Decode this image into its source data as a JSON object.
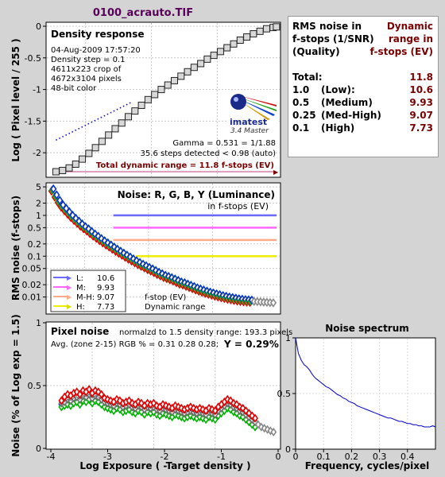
{
  "page_title": "0100_acrauto.TIF",
  "summary": {
    "header_left": [
      "RMS noise in",
      "f-stops (1/SNR)",
      "(Quality)"
    ],
    "header_right": [
      "Dynamic",
      "range in",
      "f-stops (EV)"
    ],
    "total_label": "Total:",
    "total_value": "11.8",
    "rows": [
      {
        "key": "1.0",
        "desc": "(Low):",
        "value": "10.6"
      },
      {
        "key": "0.5",
        "desc": "(Medium)",
        "value": "9.93"
      },
      {
        "key": "0.25",
        "desc": "(Med-High)",
        "value": "9.07"
      },
      {
        "key": "0.1",
        "desc": "(High)",
        "value": "7.73"
      }
    ]
  },
  "density_panel": {
    "title": "Density response",
    "info": [
      "04-Aug-2009 17:57:20",
      "Density step = 0.1",
      "4611x223 crop of",
      "4672x3104 pixels",
      "48-bit color"
    ],
    "logo_text": "imatest",
    "version": "3.4  Master",
    "gamma_text": "Gamma = 0.531 = 1/1.88",
    "steps_text": "35.6 steps detected < 0.98 (auto)",
    "dr_text": "Total dynamic range = 11.8 f-stops (EV)",
    "ylabel": "Log ( Pixel level / 255 )",
    "yticks": [
      "0",
      "-0.5",
      "-1",
      "-1.5",
      "-2"
    ]
  },
  "noise_fstop_panel": {
    "title": "Noise: R, G, B, Y (Luminance)",
    "subtitle": "in f-stops (EV)",
    "ylabel": "RMS noise (f-stops)",
    "yticks": [
      "5",
      "2",
      "1",
      "0.5",
      "0.2",
      "0.1",
      "0.05",
      "0.02",
      "0.01"
    ],
    "legend": [
      {
        "label": "L:",
        "value": "10.6",
        "color": "#6a6aff"
      },
      {
        "label": "M:",
        "value": "9.93",
        "color": "#ff66ff"
      },
      {
        "label": "M-H:",
        "value": "9.07",
        "color": "#ffaa88"
      },
      {
        "label": "H:",
        "value": "7.73",
        "color": "#eeee00"
      }
    ],
    "note1": "f-stop (EV)",
    "note2": "Dynamic range"
  },
  "pixel_noise_panel": {
    "title": "Pixel noise",
    "norm_text": "normalzd to 1.5 density range: 193.3 pixels",
    "avg_text": "Avg. (zone 2-15) RGB % = 0.31  0.28  0.28;",
    "y_text": "Y = 0.29%",
    "ylabel": "Noise (% of Log exp = 1.5)",
    "xlabel": "Log Exposure ( -Target density )",
    "yticks": [
      "1",
      "0.5",
      "0"
    ],
    "xticks": [
      "-4",
      "-3",
      "-2",
      "-1",
      "0"
    ]
  },
  "spectrum_panel": {
    "title": "Noise spectrum",
    "xlabel": "Frequency, cycles/pixel",
    "yticks": [
      "1",
      "0.5",
      "0"
    ],
    "xticks": [
      "0",
      "0.1",
      "0.2",
      "0.3",
      "0.4"
    ]
  },
  "chart_data": [
    {
      "name": "density_response",
      "type": "scatter",
      "title": "Density response",
      "ylabel": "Log ( Pixel level / 255 )",
      "xlim": [
        -3.6,
        -0.05
      ],
      "ylim": [
        -2.35,
        0
      ],
      "step_x": [
        -3.45,
        -3.35,
        -3.25,
        -3.15,
        -3.05,
        -2.95,
        -2.85,
        -2.75,
        -2.65,
        -2.55,
        -2.45,
        -2.35,
        -2.25,
        -2.15,
        -2.05,
        -1.95,
        -1.85,
        -1.75,
        -1.65,
        -1.55,
        -1.45,
        -1.35,
        -1.25,
        -1.15,
        -1.05,
        -0.95,
        -0.85,
        -0.75,
        -0.65,
        -0.55,
        -0.45,
        -0.35,
        -0.25,
        -0.15,
        -0.1
      ],
      "step_y": [
        -2.3,
        -2.28,
        -2.24,
        -2.18,
        -2.1,
        -2.01,
        -1.92,
        -1.82,
        -1.72,
        -1.62,
        -1.53,
        -1.43,
        -1.34,
        -1.25,
        -1.16,
        -1.08,
        -1.0,
        -0.93,
        -0.86,
        -0.79,
        -0.72,
        -0.65,
        -0.59,
        -0.52,
        -0.46,
        -0.4,
        -0.34,
        -0.28,
        -0.22,
        -0.17,
        -0.12,
        -0.08,
        -0.04,
        -0.02,
        -0.01
      ],
      "gamma_fit_x": [
        -3.45,
        -2.3
      ],
      "gamma_fit_y": [
        -1.8,
        -1.2
      ]
    },
    {
      "name": "noise_fstops",
      "type": "scatter",
      "title": "Noise: R, G, B, Y (Luminance)",
      "ylabel": "RMS noise (f-stops)",
      "yscale": "log",
      "ylim": [
        0.004,
        6
      ],
      "xlim": [
        -3.6,
        0.05
      ],
      "x": [
        -3.5,
        -3.45,
        -3.4,
        -3.35,
        -3.3,
        -3.25,
        -3.2,
        -3.15,
        -3.1,
        -3.05,
        -3.0,
        -2.95,
        -2.9,
        -2.85,
        -2.8,
        -2.75,
        -2.7,
        -2.65,
        -2.6,
        -2.55,
        -2.5,
        -2.45,
        -2.4,
        -2.35,
        -2.3,
        -2.25,
        -2.2,
        -2.15,
        -2.1,
        -2.05,
        -2.0,
        -1.95,
        -1.9,
        -1.85,
        -1.8,
        -1.75,
        -1.7,
        -1.65,
        -1.6,
        -1.55,
        -1.5,
        -1.45,
        -1.4,
        -1.35,
        -1.3,
        -1.25,
        -1.2,
        -1.15,
        -1.1,
        -1.05,
        -1.0,
        -0.95,
        -0.9,
        -0.85,
        -0.8,
        -0.75,
        -0.7,
        -0.65,
        -0.6,
        -0.55,
        -0.5,
        -0.45,
        -0.4,
        -0.35,
        -0.3,
        -0.25,
        -0.2,
        -0.15,
        -0.1,
        -0.05
      ],
      "y": [
        4.2,
        3.0,
        2.2,
        1.7,
        1.4,
        1.15,
        0.95,
        0.8,
        0.68,
        0.58,
        0.5,
        0.44,
        0.38,
        0.33,
        0.29,
        0.255,
        0.225,
        0.2,
        0.178,
        0.158,
        0.14,
        0.125,
        0.112,
        0.1,
        0.09,
        0.081,
        0.073,
        0.066,
        0.06,
        0.055,
        0.05,
        0.046,
        0.042,
        0.038,
        0.035,
        0.032,
        0.03,
        0.028,
        0.026,
        0.024,
        0.022,
        0.021,
        0.0195,
        0.0182,
        0.017,
        0.0158,
        0.0148,
        0.0139,
        0.0131,
        0.0124,
        0.0118,
        0.0112,
        0.0107,
        0.0102,
        0.0098,
        0.0094,
        0.0091,
        0.0088,
        0.0085,
        0.0083,
        0.0081,
        0.008,
        0.0079,
        0.0078,
        0.0077,
        0.0076,
        0.0075,
        0.0074,
        0.0073,
        0.0072
      ],
      "threshold_lines": [
        {
          "level": 1.0,
          "start": -2.55,
          "color": "#6a6aff"
        },
        {
          "level": 0.5,
          "start": -2.55,
          "color": "#ff66ff"
        },
        {
          "level": 0.25,
          "start": -2.55,
          "color": "#ffaa88"
        },
        {
          "level": 0.1,
          "start": -2.2,
          "color": "#eeee00"
        }
      ]
    },
    {
      "name": "pixel_noise",
      "type": "scatter",
      "title": "Pixel noise",
      "xlabel": "Log Exposure ( -Target density )",
      "ylabel": "Noise (% of Log exp = 1.5)",
      "xlim": [
        -3.75,
        0.05
      ],
      "ylim": [
        0,
        1.0
      ],
      "x": [
        -3.5,
        -3.45,
        -3.4,
        -3.35,
        -3.3,
        -3.25,
        -3.2,
        -3.15,
        -3.1,
        -3.05,
        -3.0,
        -2.95,
        -2.9,
        -2.85,
        -2.8,
        -2.75,
        -2.7,
        -2.65,
        -2.6,
        -2.55,
        -2.5,
        -2.45,
        -2.4,
        -2.35,
        -2.3,
        -2.25,
        -2.2,
        -2.15,
        -2.1,
        -2.05,
        -2.0,
        -1.95,
        -1.9,
        -1.85,
        -1.8,
        -1.75,
        -1.7,
        -1.65,
        -1.6,
        -1.55,
        -1.5,
        -1.45,
        -1.4,
        -1.35,
        -1.3,
        -1.25,
        -1.2,
        -1.15,
        -1.1,
        -1.05,
        -1.0,
        -0.95,
        -0.9,
        -0.85,
        -0.8,
        -0.75,
        -0.7,
        -0.65,
        -0.6,
        -0.55,
        -0.5,
        -0.45,
        -0.4,
        -0.35,
        -0.3,
        -0.25,
        -0.2,
        -0.15,
        -0.1,
        -0.05
      ],
      "series": [
        {
          "name": "R",
          "color": "#e00000",
          "values": [
            0.38,
            0.41,
            0.43,
            0.42,
            0.44,
            0.45,
            0.43,
            0.46,
            0.45,
            0.47,
            0.44,
            0.46,
            0.45,
            0.43,
            0.4,
            0.39,
            0.38,
            0.37,
            0.39,
            0.38,
            0.36,
            0.37,
            0.38,
            0.36,
            0.35,
            0.37,
            0.36,
            0.34,
            0.36,
            0.35,
            0.36,
            0.34,
            0.33,
            0.35,
            0.34,
            0.33,
            0.32,
            0.34,
            0.33,
            0.32,
            0.31,
            0.32,
            0.33,
            0.32,
            0.31,
            0.32,
            0.31,
            0.3,
            0.32,
            0.31,
            0.3,
            0.33,
            0.35,
            0.37,
            0.39,
            0.38,
            0.36,
            0.35,
            0.33,
            0.32,
            0.3,
            0.28,
            0.26,
            0.24,
            0.22,
            0.2,
            0.18,
            0.17,
            0.16,
            0.15
          ]
        },
        {
          "name": "G",
          "color": "#00b000",
          "values": [
            0.33,
            0.34,
            0.35,
            0.34,
            0.36,
            0.37,
            0.35,
            0.38,
            0.37,
            0.39,
            0.36,
            0.38,
            0.37,
            0.35,
            0.33,
            0.32,
            0.31,
            0.3,
            0.32,
            0.31,
            0.29,
            0.3,
            0.31,
            0.29,
            0.28,
            0.3,
            0.29,
            0.27,
            0.29,
            0.28,
            0.29,
            0.27,
            0.26,
            0.28,
            0.27,
            0.26,
            0.25,
            0.27,
            0.26,
            0.25,
            0.24,
            0.25,
            0.26,
            0.25,
            0.24,
            0.25,
            0.24,
            0.23,
            0.25,
            0.24,
            0.23,
            0.26,
            0.28,
            0.3,
            0.32,
            0.31,
            0.29,
            0.28,
            0.26,
            0.25,
            0.23,
            0.21,
            0.19,
            0.17,
            0.15,
            0.13,
            0.12,
            0.11,
            0.1,
            0.09
          ]
        },
        {
          "name": "B",
          "color": "#0030d0",
          "values": [
            0.35,
            0.36,
            0.37,
            0.36,
            0.38,
            0.39,
            0.37,
            0.4,
            0.39,
            0.41,
            0.38,
            0.4,
            0.39,
            0.37,
            0.35,
            0.34,
            0.33,
            0.32,
            0.34,
            0.33,
            0.31,
            0.32,
            0.33,
            0.31,
            0.3,
            0.32,
            0.31,
            0.29,
            0.31,
            0.3,
            0.31,
            0.29,
            0.28,
            0.3,
            0.29,
            0.28,
            0.27,
            0.29,
            0.28,
            0.27,
            0.26,
            0.27,
            0.28,
            0.27,
            0.26,
            0.27,
            0.26,
            0.25,
            0.27,
            0.26,
            0.25,
            0.28,
            0.3,
            0.32,
            0.34,
            0.33,
            0.31,
            0.3,
            0.28,
            0.27,
            0.25,
            0.23,
            0.21,
            0.19,
            0.17,
            0.15,
            0.14,
            0.13,
            0.12,
            0.11
          ]
        },
        {
          "name": "Y",
          "color": "#707070",
          "values": [
            0.36,
            0.37,
            0.39,
            0.38,
            0.4,
            0.41,
            0.39,
            0.42,
            0.41,
            0.43,
            0.4,
            0.42,
            0.41,
            0.39,
            0.37,
            0.36,
            0.35,
            0.34,
            0.36,
            0.35,
            0.33,
            0.34,
            0.35,
            0.33,
            0.32,
            0.34,
            0.33,
            0.31,
            0.33,
            0.32,
            0.33,
            0.31,
            0.3,
            0.32,
            0.31,
            0.3,
            0.29,
            0.31,
            0.3,
            0.29,
            0.28,
            0.29,
            0.3,
            0.29,
            0.28,
            0.29,
            0.28,
            0.27,
            0.29,
            0.28,
            0.27,
            0.3,
            0.32,
            0.34,
            0.36,
            0.35,
            0.33,
            0.32,
            0.3,
            0.29,
            0.27,
            0.25,
            0.23,
            0.21,
            0.19,
            0.17,
            0.16,
            0.15,
            0.14,
            0.13
          ]
        }
      ]
    },
    {
      "name": "noise_spectrum",
      "type": "line",
      "title": "Noise spectrum",
      "xlabel": "Frequency, cycles/pixel",
      "xlim": [
        0,
        0.5
      ],
      "ylim": [
        0,
        1.0
      ],
      "x": [
        0.0,
        0.01,
        0.02,
        0.03,
        0.04,
        0.05,
        0.06,
        0.07,
        0.08,
        0.09,
        0.1,
        0.11,
        0.12,
        0.13,
        0.14,
        0.15,
        0.16,
        0.17,
        0.18,
        0.19,
        0.2,
        0.21,
        0.22,
        0.23,
        0.24,
        0.25,
        0.26,
        0.27,
        0.28,
        0.29,
        0.3,
        0.31,
        0.32,
        0.33,
        0.34,
        0.35,
        0.36,
        0.37,
        0.38,
        0.39,
        0.4,
        0.41,
        0.42,
        0.43,
        0.44,
        0.45,
        0.46,
        0.47,
        0.48,
        0.49,
        0.5
      ],
      "y": [
        1.0,
        0.86,
        0.8,
        0.76,
        0.74,
        0.71,
        0.67,
        0.64,
        0.62,
        0.6,
        0.58,
        0.56,
        0.55,
        0.53,
        0.51,
        0.49,
        0.48,
        0.46,
        0.45,
        0.43,
        0.42,
        0.41,
        0.39,
        0.38,
        0.37,
        0.36,
        0.35,
        0.34,
        0.33,
        0.32,
        0.31,
        0.3,
        0.29,
        0.28,
        0.28,
        0.27,
        0.26,
        0.25,
        0.25,
        0.24,
        0.23,
        0.23,
        0.22,
        0.22,
        0.21,
        0.21,
        0.2,
        0.2,
        0.2,
        0.21,
        0.2
      ]
    }
  ]
}
